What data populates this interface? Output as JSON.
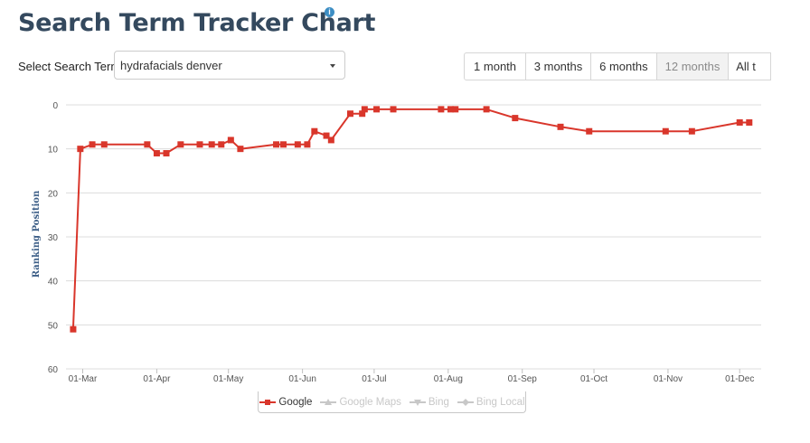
{
  "page": {
    "title": "Search Term Tracker Chart",
    "info_icon": "info-icon"
  },
  "search_term": {
    "label": "Select Search Term:",
    "value": "hydrafacials denver",
    "icon": "chevron-down-icon"
  },
  "time_ranges": [
    {
      "label": "1 month",
      "active": false
    },
    {
      "label": "3 months",
      "active": false
    },
    {
      "label": "6 months",
      "active": false
    },
    {
      "label": "12 months",
      "active": true
    },
    {
      "label": "All t",
      "active": false
    }
  ],
  "chart_data": {
    "type": "line",
    "ylabel": "Ranking Position",
    "xlabel": "",
    "ylim": [
      0,
      60
    ],
    "y_reversed": true,
    "y_ticks": [
      0,
      10,
      20,
      30,
      40,
      50,
      60
    ],
    "x_range": [
      "2018-02-22",
      "2018-12-10"
    ],
    "x_ticks": [
      {
        "date": "2018-03-01",
        "label": "01-Mar"
      },
      {
        "date": "2018-04-01",
        "label": "01-Apr"
      },
      {
        "date": "2018-05-01",
        "label": "01-May"
      },
      {
        "date": "2018-06-01",
        "label": "01-Jun"
      },
      {
        "date": "2018-07-01",
        "label": "01-Jul"
      },
      {
        "date": "2018-08-01",
        "label": "01-Aug"
      },
      {
        "date": "2018-09-01",
        "label": "01-Sep"
      },
      {
        "date": "2018-10-01",
        "label": "01-Oct"
      },
      {
        "date": "2018-11-01",
        "label": "01-Nov"
      },
      {
        "date": "2018-12-01",
        "label": "01-Dec"
      }
    ],
    "grid": true,
    "legend_position": "bottom-center",
    "series": [
      {
        "name": "Google",
        "color": "#d9362b",
        "visible": true,
        "marker": "square",
        "points": [
          {
            "x": "2018-02-25",
            "y": 51
          },
          {
            "x": "2018-02-28",
            "y": 10
          },
          {
            "x": "2018-03-05",
            "y": 9
          },
          {
            "x": "2018-03-10",
            "y": 9
          },
          {
            "x": "2018-03-28",
            "y": 9
          },
          {
            "x": "2018-04-01",
            "y": 11
          },
          {
            "x": "2018-04-05",
            "y": 11
          },
          {
            "x": "2018-04-11",
            "y": 9
          },
          {
            "x": "2018-04-19",
            "y": 9
          },
          {
            "x": "2018-04-24",
            "y": 9
          },
          {
            "x": "2018-04-28",
            "y": 9
          },
          {
            "x": "2018-05-02",
            "y": 8
          },
          {
            "x": "2018-05-06",
            "y": 10
          },
          {
            "x": "2018-05-21",
            "y": 9
          },
          {
            "x": "2018-05-24",
            "y": 9
          },
          {
            "x": "2018-05-30",
            "y": 9
          },
          {
            "x": "2018-06-03",
            "y": 9
          },
          {
            "x": "2018-06-06",
            "y": 6
          },
          {
            "x": "2018-06-11",
            "y": 7
          },
          {
            "x": "2018-06-13",
            "y": 8
          },
          {
            "x": "2018-06-21",
            "y": 2
          },
          {
            "x": "2018-06-26",
            "y": 2
          },
          {
            "x": "2018-06-27",
            "y": 1
          },
          {
            "x": "2018-07-02",
            "y": 1
          },
          {
            "x": "2018-07-09",
            "y": 1
          },
          {
            "x": "2018-07-29",
            "y": 1
          },
          {
            "x": "2018-08-02",
            "y": 1
          },
          {
            "x": "2018-08-04",
            "y": 1
          },
          {
            "x": "2018-08-17",
            "y": 1
          },
          {
            "x": "2018-08-29",
            "y": 3
          },
          {
            "x": "2018-09-17",
            "y": 5
          },
          {
            "x": "2018-09-29",
            "y": 6
          },
          {
            "x": "2018-10-31",
            "y": 6
          },
          {
            "x": "2018-11-11",
            "y": 6
          },
          {
            "x": "2018-12-01",
            "y": 4
          },
          {
            "x": "2018-12-05",
            "y": 4
          }
        ]
      },
      {
        "name": "Google Maps",
        "color": "#c8c8c8",
        "visible": false,
        "marker": "triangle",
        "points": []
      },
      {
        "name": "Bing",
        "color": "#c8c8c8",
        "visible": false,
        "marker": "triangle-down",
        "points": []
      },
      {
        "name": "Bing Local",
        "color": "#c8c8c8",
        "visible": false,
        "marker": "diamond",
        "points": []
      }
    ]
  }
}
